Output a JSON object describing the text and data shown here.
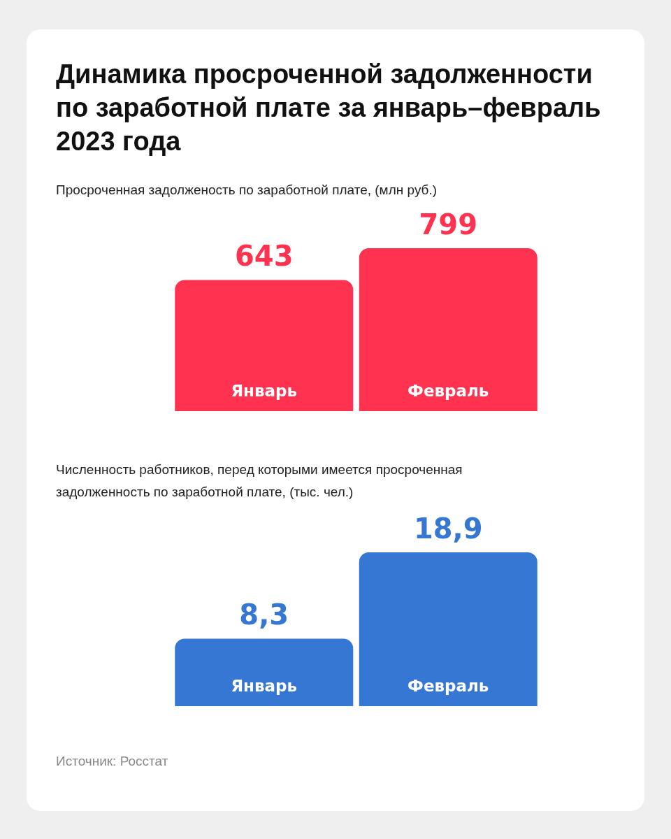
{
  "chart_data": [
    {
      "type": "bar",
      "title": "Динамика просроченной задолженности по заработной плате за январь–февраль 2023 года",
      "subtitle": "Просроченная задолженость по заработной плате, (млн руб.)",
      "categories": [
        "Январь",
        "Февраль"
      ],
      "values": [
        643,
        799
      ],
      "color": "#ff3350",
      "data_labels": true
    },
    {
      "type": "bar",
      "subtitle": "Численность работников, перед которыми имеется просроченная задолженность по заработной плате, (тыс. чел.)",
      "categories": [
        "Январь",
        "Февраль"
      ],
      "values": [
        8.3,
        18.9
      ],
      "value_labels": [
        "8,3",
        "18,9"
      ],
      "color": "#3677d4",
      "annotations": [
        "Источник: Росстат"
      ]
    }
  ]
}
